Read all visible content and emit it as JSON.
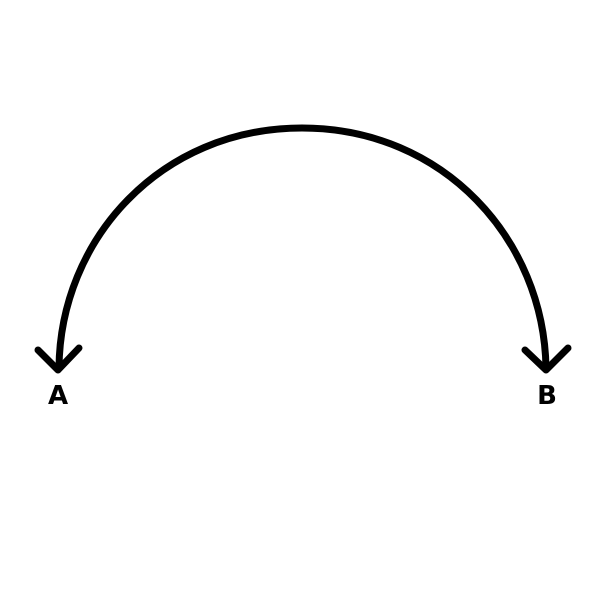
{
  "colors": {
    "background": "#ffffff",
    "stroke": "#000000",
    "label": "#000000"
  },
  "diagram": {
    "nodes": [
      {
        "id": "A",
        "label": "A"
      },
      {
        "id": "B",
        "label": "B"
      }
    ],
    "edges": [
      {
        "shape": "arc",
        "ends": [
          "A",
          "B"
        ],
        "arrowheads": [
          "A",
          "B"
        ]
      }
    ]
  }
}
